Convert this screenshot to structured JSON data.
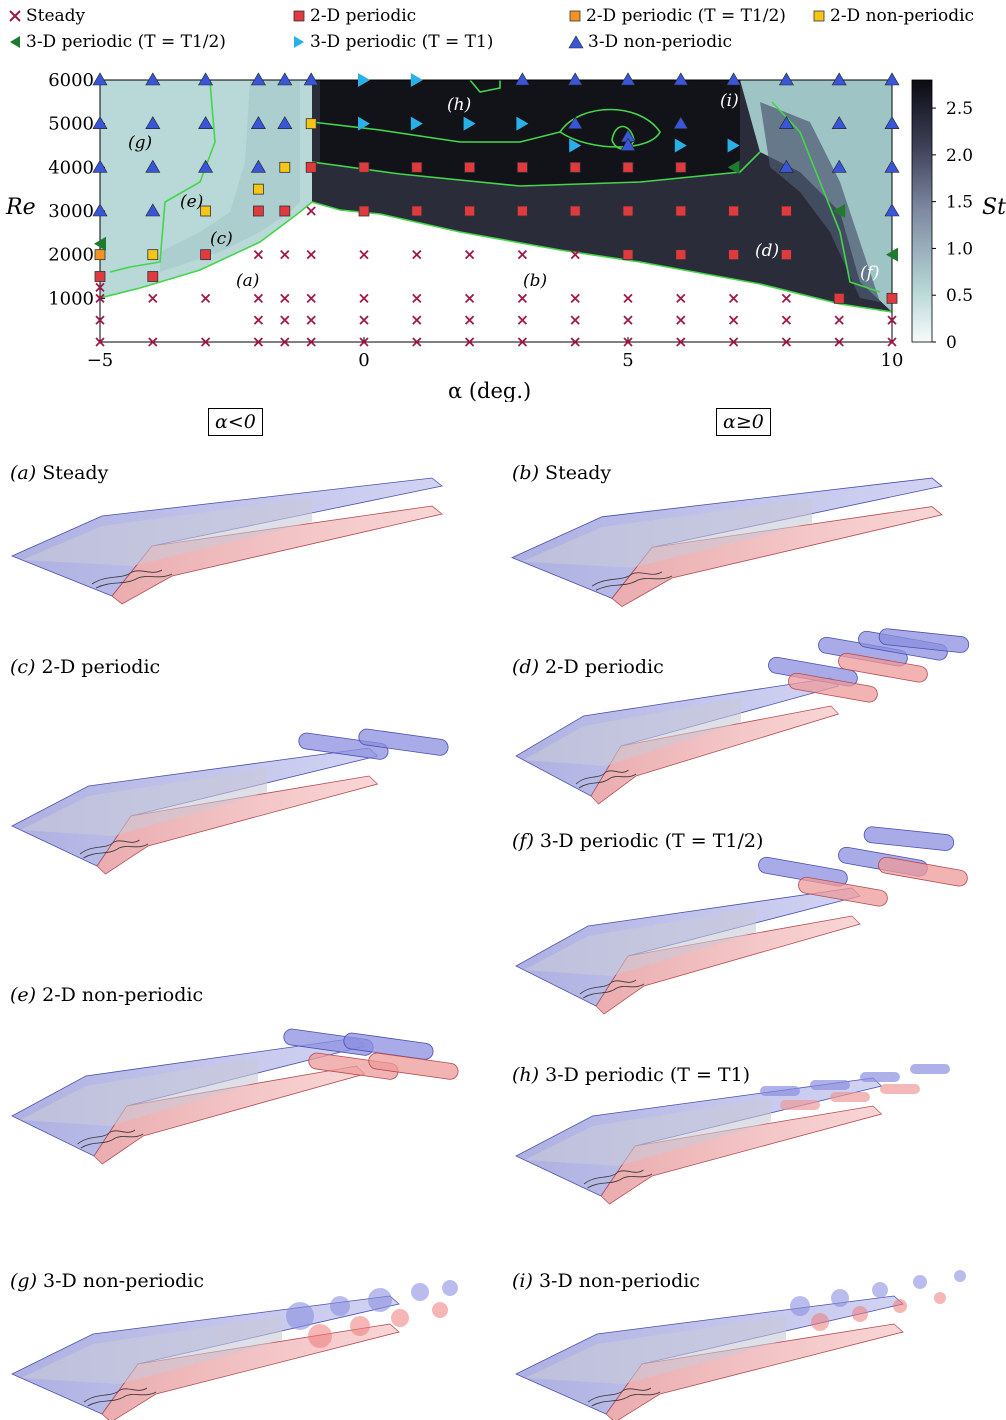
{
  "legend": {
    "items": [
      {
        "label": "Steady",
        "marker": "cross",
        "color": "#a01848"
      },
      {
        "label": "2-D periodic",
        "marker": "square",
        "color": "#e03a3e"
      },
      {
        "label": "2-D periodic (T = T1/2)",
        "marker": "square",
        "color": "#f39422"
      },
      {
        "label": "2-D non-periodic",
        "marker": "square",
        "color": "#f5c518"
      },
      {
        "label": "3-D periodic (T = T1/2)",
        "marker": "triangle-left",
        "color": "#1e7b2e"
      },
      {
        "label": "3-D periodic (T = T1)",
        "marker": "triangle-right",
        "color": "#2ab0e8"
      },
      {
        "label": "3-D non-periodic",
        "marker": "triangle-up",
        "color": "#3a56d8"
      }
    ]
  },
  "chart_data": {
    "type": "scatter",
    "xlabel": "α (deg.)",
    "ylabel": "Re",
    "colorbar_label": "St",
    "xlim": [
      -5,
      10
    ],
    "ylim": [
      0,
      6000
    ],
    "xticks": [
      "−5",
      "0",
      "5",
      "10"
    ],
    "yticks": [
      "1000",
      "2000",
      "3000",
      "4000",
      "5000",
      "6000"
    ],
    "colorbar_ticks": [
      "0",
      "0.5",
      "1.0",
      "1.5",
      "2.0",
      "2.5"
    ],
    "colorbar_range": [
      0,
      2.8
    ],
    "background": "contour map of St over (α, Re); light in steady region, dark for high St",
    "region_labels": [
      "(a)",
      "(b)",
      "(c)",
      "(d)",
      "(e)",
      "(f)",
      "(g)",
      "(h)",
      "(i)"
    ],
    "points": {
      "steady": [
        [
          -5,
          0
        ],
        [
          -4,
          0
        ],
        [
          -3,
          0
        ],
        [
          -2,
          0
        ],
        [
          -1.5,
          0
        ],
        [
          -1,
          0
        ],
        [
          0,
          0
        ],
        [
          1,
          0
        ],
        [
          2,
          0
        ],
        [
          3,
          0
        ],
        [
          4,
          0
        ],
        [
          5,
          0
        ],
        [
          6,
          0
        ],
        [
          7,
          0
        ],
        [
          8,
          0
        ],
        [
          9,
          0
        ],
        [
          10,
          0
        ],
        [
          -5,
          500
        ],
        [
          -2,
          500
        ],
        [
          -1.5,
          500
        ],
        [
          -1,
          500
        ],
        [
          0,
          500
        ],
        [
          1,
          500
        ],
        [
          2,
          500
        ],
        [
          3,
          500
        ],
        [
          4,
          500
        ],
        [
          5,
          500
        ],
        [
          6,
          500
        ],
        [
          7,
          500
        ],
        [
          8,
          500
        ],
        [
          9,
          500
        ],
        [
          10,
          500
        ],
        [
          -5,
          1000
        ],
        [
          -4,
          1000
        ],
        [
          -3,
          1000
        ],
        [
          -2,
          1000
        ],
        [
          -1.5,
          1000
        ],
        [
          -1,
          1000
        ],
        [
          0,
          1000
        ],
        [
          1,
          1000
        ],
        [
          2,
          1000
        ],
        [
          3,
          1000
        ],
        [
          4,
          1000
        ],
        [
          5,
          1000
        ],
        [
          6,
          1000
        ],
        [
          7,
          1000
        ],
        [
          8,
          1000
        ],
        [
          -5,
          1250
        ],
        [
          -2,
          2000
        ],
        [
          -1.5,
          2000
        ],
        [
          -1,
          2000
        ],
        [
          0,
          2000
        ],
        [
          1,
          2000
        ],
        [
          2,
          2000
        ],
        [
          3,
          2000
        ],
        [
          4,
          2000
        ],
        [
          -1,
          3000
        ]
      ],
      "periodic_2d": [
        [
          -5,
          1500
        ],
        [
          -4,
          1500
        ],
        [
          -3,
          2000
        ],
        [
          5,
          2000
        ],
        [
          6,
          2000
        ],
        [
          7,
          2000
        ],
        [
          8,
          2000
        ],
        [
          9,
          1000
        ],
        [
          10,
          1000
        ],
        [
          -2,
          3000
        ],
        [
          -1.5,
          3000
        ],
        [
          0,
          3000
        ],
        [
          1,
          3000
        ],
        [
          2,
          3000
        ],
        [
          3,
          3000
        ],
        [
          4,
          3000
        ],
        [
          5,
          3000
        ],
        [
          6,
          3000
        ],
        [
          7,
          3000
        ],
        [
          8,
          3000
        ],
        [
          -1,
          4000
        ],
        [
          0,
          4000
        ],
        [
          1,
          4000
        ],
        [
          2,
          4000
        ],
        [
          3,
          4000
        ],
        [
          4,
          4000
        ],
        [
          5,
          4000
        ],
        [
          6,
          4000
        ]
      ],
      "periodic_2d_half": [
        [
          -5,
          2000
        ]
      ],
      "nonperiodic_2d": [
        [
          -4,
          2000
        ],
        [
          -3,
          3000
        ],
        [
          -2,
          3500
        ],
        [
          -1.5,
          4000
        ],
        [
          -1,
          5000
        ]
      ],
      "periodic_3d_half": [
        [
          -5,
          2250
        ],
        [
          7,
          4000
        ],
        [
          9,
          3000
        ],
        [
          10,
          2000
        ]
      ],
      "periodic_3d_T1": [
        [
          0,
          6000
        ],
        [
          1,
          6000
        ],
        [
          0,
          5000
        ],
        [
          1,
          5000
        ],
        [
          2,
          5000
        ],
        [
          3,
          5000
        ],
        [
          4,
          4500
        ],
        [
          6,
          4500
        ],
        [
          7,
          4500
        ]
      ],
      "nonperiodic_3d": [
        [
          -5,
          6000
        ],
        [
          -4,
          6000
        ],
        [
          -3,
          6000
        ],
        [
          -2,
          6000
        ],
        [
          -1.5,
          6000
        ],
        [
          -1,
          6000
        ],
        [
          3,
          6000
        ],
        [
          4,
          6000
        ],
        [
          5,
          6000
        ],
        [
          6,
          6000
        ],
        [
          7,
          6000
        ],
        [
          8,
          6000
        ],
        [
          9,
          6000
        ],
        [
          10,
          6000
        ],
        [
          -5,
          5000
        ],
        [
          -4,
          5000
        ],
        [
          -3,
          5000
        ],
        [
          -2,
          5000
        ],
        [
          -1.5,
          5000
        ],
        [
          4,
          5000
        ],
        [
          5,
          4700
        ],
        [
          6,
          5000
        ],
        [
          8,
          5000
        ],
        [
          9,
          5000
        ],
        [
          10,
          5000
        ],
        [
          -5,
          4000
        ],
        [
          -4,
          4000
        ],
        [
          -3,
          4000
        ],
        [
          -2,
          4000
        ],
        [
          8,
          4000
        ],
        [
          9,
          4000
        ],
        [
          10,
          4000
        ],
        [
          -5,
          3000
        ],
        [
          -4,
          3000
        ],
        [
          10,
          3000
        ],
        [
          5,
          4500
        ]
      ]
    }
  },
  "tags": {
    "neg": "α<0",
    "pos": "α≥0"
  },
  "panels": [
    {
      "letter": "(a)",
      "title": "Steady"
    },
    {
      "letter": "(b)",
      "title": "Steady"
    },
    {
      "letter": "(c)",
      "title": "2-D periodic"
    },
    {
      "letter": "(d)",
      "title": "2-D periodic"
    },
    {
      "letter": "(f)",
      "title": "3-D periodic (T = T1/2)"
    },
    {
      "letter": "(e)",
      "title": "2-D non-periodic"
    },
    {
      "letter": "(h)",
      "title": "3-D periodic (T = T1)"
    },
    {
      "letter": "(g)",
      "title": "3-D non-periodic"
    },
    {
      "letter": "(i)",
      "title": "3-D non-periodic"
    }
  ]
}
